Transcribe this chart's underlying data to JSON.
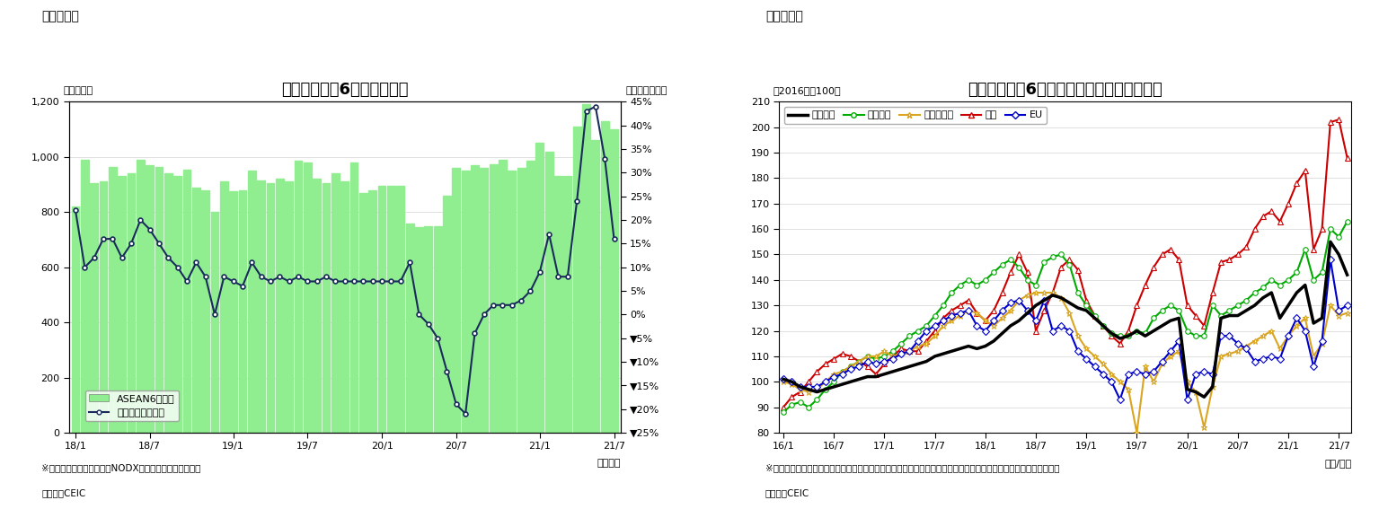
{
  "fig1": {
    "title": "アセアン主要6カ国の輸出額",
    "ylabel_left": "（億ドル）",
    "ylabel_right": "（前年同月比）",
    "xlabel": "（年月）",
    "heading": "（図表１）",
    "note1": "※シンガポールの輸出額はNODX（石油と再輸出除く）。",
    "note2": "（資料）CEIC",
    "bar_color": "#90EE90",
    "line_color": "#1a2c5b",
    "bar_data": [
      820,
      990,
      905,
      910,
      965,
      930,
      940,
      990,
      970,
      965,
      940,
      930,
      955,
      890,
      880,
      800,
      910,
      875,
      880,
      950,
      915,
      905,
      920,
      910,
      985,
      980,
      920,
      905,
      940,
      910,
      980,
      870,
      880,
      895,
      895,
      895,
      760,
      745,
      750,
      750,
      860,
      960,
      950,
      970,
      960,
      975,
      990,
      950,
      960,
      985,
      1050,
      1020,
      930,
      930,
      1110,
      1190,
      1060,
      1130,
      1100
    ],
    "line_data": [
      22,
      10,
      12,
      16,
      16,
      12,
      15,
      20,
      18,
      15,
      12,
      10,
      7,
      11,
      8,
      0,
      8,
      7,
      6,
      11,
      8,
      7,
      8,
      7,
      8,
      7,
      7,
      8,
      7,
      7,
      7,
      7,
      7,
      7,
      7,
      7,
      11,
      0,
      -2,
      -5,
      -12,
      -19,
      -21,
      -4,
      0,
      2,
      2,
      2,
      3,
      5,
      9,
      17,
      8,
      8,
      24,
      43,
      44,
      33,
      16
    ],
    "x_tick_labels": [
      "18/1",
      "18/7",
      "19/1",
      "19/7",
      "20/1",
      "20/7",
      "21/1",
      "21/7"
    ],
    "ylim_left": [
      0,
      1200
    ],
    "ylim_right": [
      -25,
      45
    ],
    "yticks_left": [
      0,
      200,
      400,
      600,
      800,
      1000,
      1200
    ],
    "ytick_labels_left": [
      "0",
      "200",
      "400",
      "600",
      "800",
      "1,000",
      "1,200"
    ],
    "yticks_right": [
      45,
      40,
      35,
      30,
      25,
      20,
      15,
      10,
      5,
      0,
      -5,
      -10,
      -15,
      -20,
      -25
    ],
    "ytick_labels_right": [
      "45%",
      "40%",
      "35%",
      "30%",
      "25%",
      "20%",
      "15%",
      "10%",
      "5%",
      "0%",
      "▼5%",
      "▼10%",
      "▼15%",
      "▼20%",
      "▼25%"
    ],
    "legend_bar": "ASEAN6カ国計",
    "legend_line": "増加率（右目盛）"
  },
  "fig2": {
    "title": "アセアン主要6カ国　仕向け地別の輸出動向",
    "ylabel_left": "（2016年＝100）",
    "xlabel": "（年/月）",
    "heading": "（図表２）",
    "note1": "※タイ、マレーシア、シンガポール（地場輸出）、インドネシア（非石油ガス輸出）、フィリピンの輸出より算出。",
    "note2": "（資料）CEIC",
    "ylim": [
      80,
      210
    ],
    "yticks": [
      80,
      90,
      100,
      110,
      120,
      130,
      140,
      150,
      160,
      170,
      180,
      190,
      200,
      210
    ],
    "x_tick_labels": [
      "16/1",
      "16/7",
      "17/1",
      "17/7",
      "18/1",
      "18/7",
      "19/1",
      "19/7",
      "20/1",
      "20/7",
      "21/1",
      "21/7"
    ],
    "series_names": [
      "輸出全体",
      "東アジア",
      "東南アジア",
      "北米",
      "EU"
    ],
    "series_colors": [
      "#000000",
      "#00aa00",
      "#DAA520",
      "#cc0000",
      "#0000cc"
    ],
    "series_linewidths": [
      2.5,
      1.5,
      1.5,
      1.5,
      1.5
    ],
    "series_markers": [
      null,
      "o",
      "*",
      "^",
      "D"
    ],
    "series_markersizes": [
      0,
      4,
      5,
      4,
      4
    ],
    "series_data": {
      "輸出全体": [
        101,
        100,
        98,
        97,
        96,
        97,
        98,
        99,
        100,
        101,
        102,
        102,
        103,
        104,
        105,
        106,
        107,
        108,
        110,
        111,
        112,
        113,
        114,
        113,
        114,
        116,
        119,
        122,
        124,
        127,
        130,
        132,
        134,
        133,
        131,
        129,
        128,
        125,
        122,
        119,
        117,
        118,
        120,
        118,
        120,
        122,
        124,
        125,
        97,
        96,
        94,
        98,
        125,
        126,
        126,
        128,
        130,
        133,
        135,
        125,
        130,
        135,
        138,
        123,
        125,
        155,
        150,
        142
      ],
      "東アジア": [
        88,
        91,
        92,
        90,
        93,
        97,
        100,
        104,
        106,
        108,
        110,
        109,
        110,
        112,
        115,
        118,
        120,
        122,
        126,
        130,
        135,
        138,
        140,
        138,
        140,
        143,
        146,
        148,
        145,
        140,
        138,
        147,
        149,
        150,
        146,
        135,
        130,
        126,
        122,
        119,
        118,
        118,
        120,
        119,
        125,
        128,
        130,
        128,
        120,
        118,
        118,
        130,
        126,
        128,
        130,
        132,
        135,
        137,
        140,
        138,
        140,
        143,
        152,
        140,
        143,
        160,
        157,
        163
      ],
      "東南アジア": [
        100,
        99,
        97,
        96,
        97,
        100,
        103,
        104,
        106,
        108,
        110,
        110,
        112,
        110,
        111,
        112,
        114,
        115,
        118,
        122,
        124,
        126,
        128,
        127,
        124,
        122,
        125,
        128,
        132,
        134,
        135,
        135,
        135,
        133,
        127,
        118,
        113,
        110,
        107,
        103,
        100,
        97,
        80,
        106,
        100,
        107,
        110,
        112,
        100,
        96,
        82,
        98,
        110,
        111,
        112,
        114,
        116,
        118,
        120,
        113,
        118,
        122,
        125,
        110,
        115,
        130,
        126,
        127
      ],
      "北米": [
        90,
        94,
        96,
        100,
        104,
        107,
        109,
        111,
        110,
        108,
        106,
        103,
        107,
        110,
        113,
        112,
        112,
        116,
        120,
        125,
        128,
        130,
        132,
        127,
        124,
        128,
        135,
        143,
        150,
        143,
        120,
        128,
        135,
        145,
        148,
        144,
        132,
        126,
        122,
        118,
        115,
        120,
        130,
        138,
        145,
        150,
        152,
        148,
        130,
        126,
        122,
        135,
        147,
        148,
        150,
        153,
        160,
        165,
        167,
        163,
        170,
        178,
        183,
        152,
        160,
        202,
        203,
        188
      ],
      "EU": [
        101,
        100,
        98,
        98,
        98,
        100,
        102,
        103,
        105,
        106,
        108,
        107,
        108,
        109,
        111,
        112,
        116,
        120,
        122,
        124,
        126,
        127,
        128,
        122,
        120,
        124,
        128,
        131,
        132,
        128,
        124,
        132,
        120,
        122,
        120,
        112,
        109,
        106,
        103,
        100,
        93,
        103,
        104,
        103,
        104,
        108,
        112,
        116,
        93,
        103,
        104,
        103,
        118,
        118,
        115,
        113,
        108,
        109,
        110,
        109,
        118,
        125,
        120,
        106,
        116,
        148,
        128,
        130
      ]
    }
  }
}
